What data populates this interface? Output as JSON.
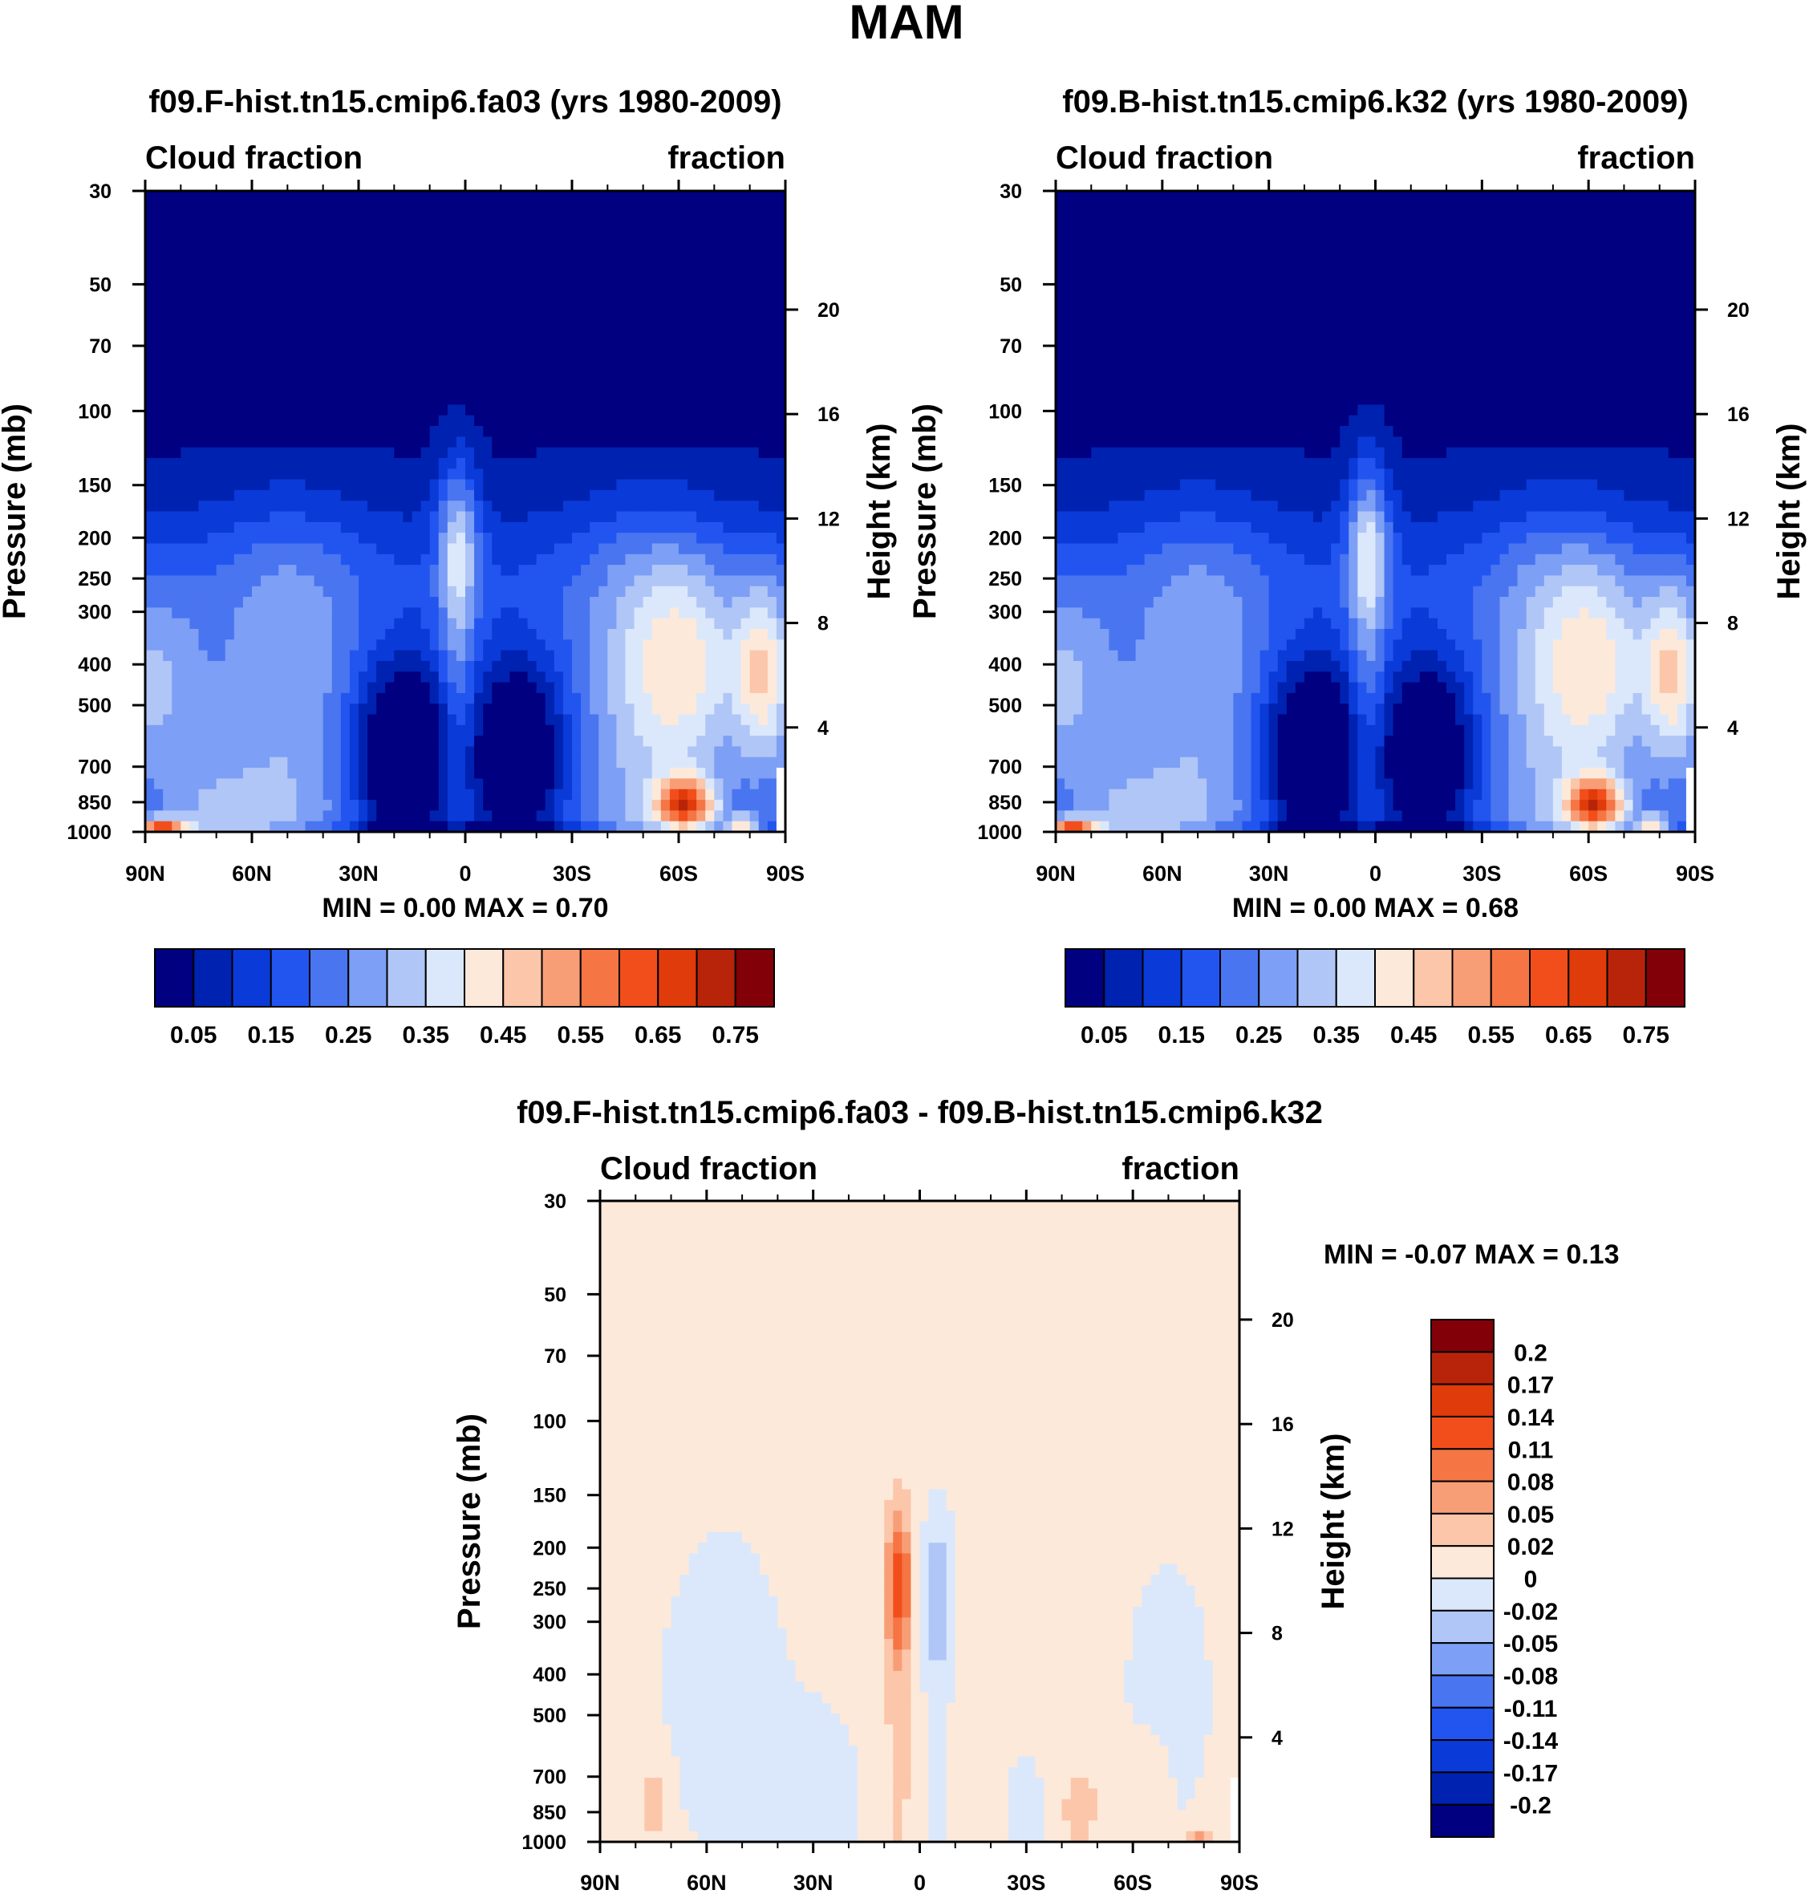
{
  "figure_title": "MAM",
  "chart_data": [
    {
      "type": "heatmap",
      "id": "fa03",
      "title": "f09.F-hist.tn15.cmip6.fa03 (yrs 1980-2009)",
      "left_label": "Cloud fraction",
      "right_label": "fraction",
      "xlabel": "",
      "ylabel": "Pressure (mb)",
      "ylabel_right": "Height (km)",
      "x_ticks": [
        "90N",
        "60N",
        "30N",
        "0",
        "30S",
        "60S",
        "90S"
      ],
      "x_tick_values": [
        90,
        60,
        30,
        0,
        -30,
        -60,
        -90
      ],
      "y_ticks": [
        30,
        50,
        70,
        100,
        150,
        200,
        250,
        300,
        400,
        500,
        700,
        850,
        1000
      ],
      "y_right_ticks": [
        20,
        16,
        12,
        8,
        4
      ],
      "xlim": [
        90,
        -90
      ],
      "ylim": [
        1000,
        30
      ],
      "stats": {
        "min_label": "MIN =",
        "min": "0.00",
        "max_label": "MAX =",
        "max": "0.70"
      },
      "colorbar": {
        "orientation": "horizontal",
        "labels": [
          "0.05",
          "0.15",
          "0.25",
          "0.35",
          "0.45",
          "0.55",
          "0.65",
          "0.75"
        ],
        "colors": [
          "#000080",
          "#0022b0",
          "#0a3ad8",
          "#2255f0",
          "#4a75f0",
          "#7d9ff5",
          "#b0c6f7",
          "#dbe8fb",
          "#fde9da",
          "#fbc6a9",
          "#f89e77",
          "#f57544",
          "#f24e1b",
          "#e03b0a",
          "#b8240a",
          "#820008"
        ]
      }
    },
    {
      "type": "heatmap",
      "id": "k32",
      "title": "f09.B-hist.tn15.cmip6.k32 (yrs 1980-2009)",
      "left_label": "Cloud fraction",
      "right_label": "fraction",
      "xlabel": "",
      "ylabel": "Pressure (mb)",
      "ylabel_right": "Height (km)",
      "x_ticks": [
        "90N",
        "60N",
        "30N",
        "0",
        "30S",
        "60S",
        "90S"
      ],
      "x_tick_values": [
        90,
        60,
        30,
        0,
        -30,
        -60,
        -90
      ],
      "y_ticks": [
        30,
        50,
        70,
        100,
        150,
        200,
        250,
        300,
        400,
        500,
        700,
        850,
        1000
      ],
      "y_right_ticks": [
        20,
        16,
        12,
        8,
        4
      ],
      "xlim": [
        90,
        -90
      ],
      "ylim": [
        1000,
        30
      ],
      "stats": {
        "min_label": "MIN =",
        "min": "0.00",
        "max_label": "MAX =",
        "max": "0.68"
      },
      "colorbar": {
        "orientation": "horizontal",
        "labels": [
          "0.05",
          "0.15",
          "0.25",
          "0.35",
          "0.45",
          "0.55",
          "0.65",
          "0.75"
        ],
        "colors": [
          "#000080",
          "#0022b0",
          "#0a3ad8",
          "#2255f0",
          "#4a75f0",
          "#7d9ff5",
          "#b0c6f7",
          "#dbe8fb",
          "#fde9da",
          "#fbc6a9",
          "#f89e77",
          "#f57544",
          "#f24e1b",
          "#e03b0a",
          "#b8240a",
          "#820008"
        ]
      }
    },
    {
      "type": "heatmap",
      "id": "diff",
      "title": "f09.F-hist.tn15.cmip6.fa03 - f09.B-hist.tn15.cmip6.k32",
      "left_label": "Cloud fraction",
      "right_label": "fraction",
      "xlabel": "",
      "ylabel": "Pressure (mb)",
      "ylabel_right": "Height (km)",
      "x_ticks": [
        "90N",
        "60N",
        "30N",
        "0",
        "30S",
        "60S",
        "90S"
      ],
      "x_tick_values": [
        90,
        60,
        30,
        0,
        -30,
        -60,
        -90
      ],
      "y_ticks": [
        30,
        50,
        70,
        100,
        150,
        200,
        250,
        300,
        400,
        500,
        700,
        850,
        1000
      ],
      "y_right_ticks": [
        20,
        16,
        12,
        8,
        4
      ],
      "xlim": [
        90,
        -90
      ],
      "ylim": [
        1000,
        30
      ],
      "stats": {
        "min_label": "MIN =",
        "min": "-0.07",
        "max_label": "MAX =",
        "max": "0.13"
      },
      "colorbar": {
        "orientation": "vertical",
        "labels": [
          "0.2",
          "0.17",
          "0.14",
          "0.11",
          "0.08",
          "0.05",
          "0.02",
          "0",
          "-0.02",
          "-0.05",
          "-0.08",
          "-0.11",
          "-0.14",
          "-0.17",
          "-0.2"
        ],
        "colors": [
          "#820008",
          "#b8240a",
          "#e03b0a",
          "#f24e1b",
          "#f57544",
          "#f89e77",
          "#fbc6a9",
          "#fde9da",
          "#dbe8fb",
          "#b0c6f7",
          "#7d9ff5",
          "#4a75f0",
          "#2255f0",
          "#0a3ad8",
          "#0022b0",
          "#000080"
        ]
      }
    }
  ]
}
